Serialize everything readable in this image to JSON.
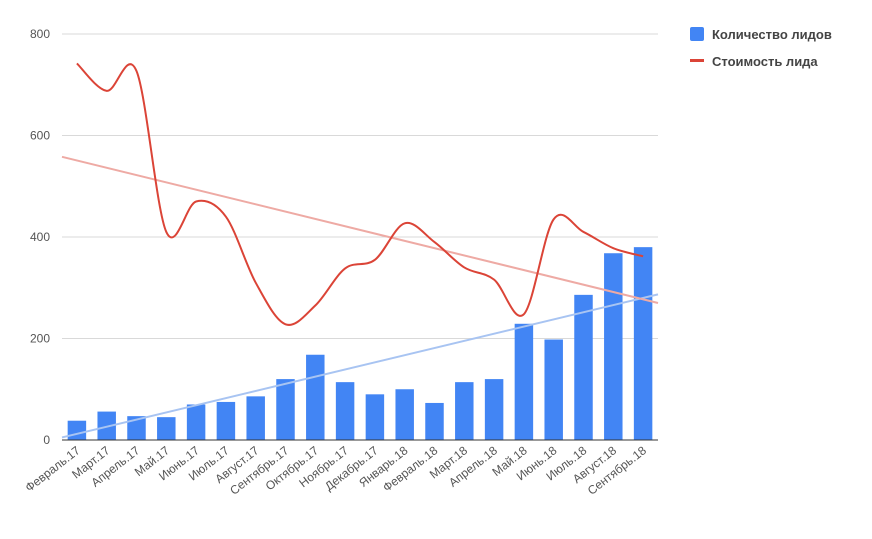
{
  "chart_data": {
    "type": "bar",
    "categories": [
      "Февраль.17",
      "Март.17",
      "Апрель.17",
      "Май.17",
      "Июнь.17",
      "Июль.17",
      "Август.17",
      "Сентябрь.17",
      "Октябрь.17",
      "Ноябрь.17",
      "Декабрь.17",
      "Январь.18",
      "Февраль.18",
      "Март.18",
      "Апрель.18",
      "Май.18",
      "Июнь.18",
      "Июль.18",
      "Август.18",
      "Сентябрь.18"
    ],
    "series": [
      {
        "name": "Количество лидов",
        "type": "bar",
        "color": "#4285f4",
        "values": [
          38,
          56,
          47,
          45,
          70,
          75,
          86,
          120,
          168,
          114,
          90,
          100,
          73,
          114,
          120,
          229,
          198,
          286,
          368,
          380
        ]
      },
      {
        "name": "Стоимость лида",
        "type": "line",
        "color": "#db4437",
        "smooth": true,
        "values": [
          742,
          688,
          727,
          410,
          470,
          440,
          310,
          228,
          265,
          338,
          355,
          427,
          390,
          340,
          316,
          248,
          435,
          410,
          378,
          362
        ]
      }
    ],
    "trendlines": [
      {
        "series": "Количество лидов",
        "color": "#a8c4f2",
        "y_start": 5,
        "y_end": 287
      },
      {
        "series": "Стоимость лида",
        "color": "#eeaaa4",
        "y_start": 558,
        "y_end": 270
      }
    ],
    "ylim": [
      0,
      800
    ],
    "yticks": [
      0,
      200,
      400,
      600,
      800
    ],
    "grid": true,
    "legend_position": "right"
  }
}
